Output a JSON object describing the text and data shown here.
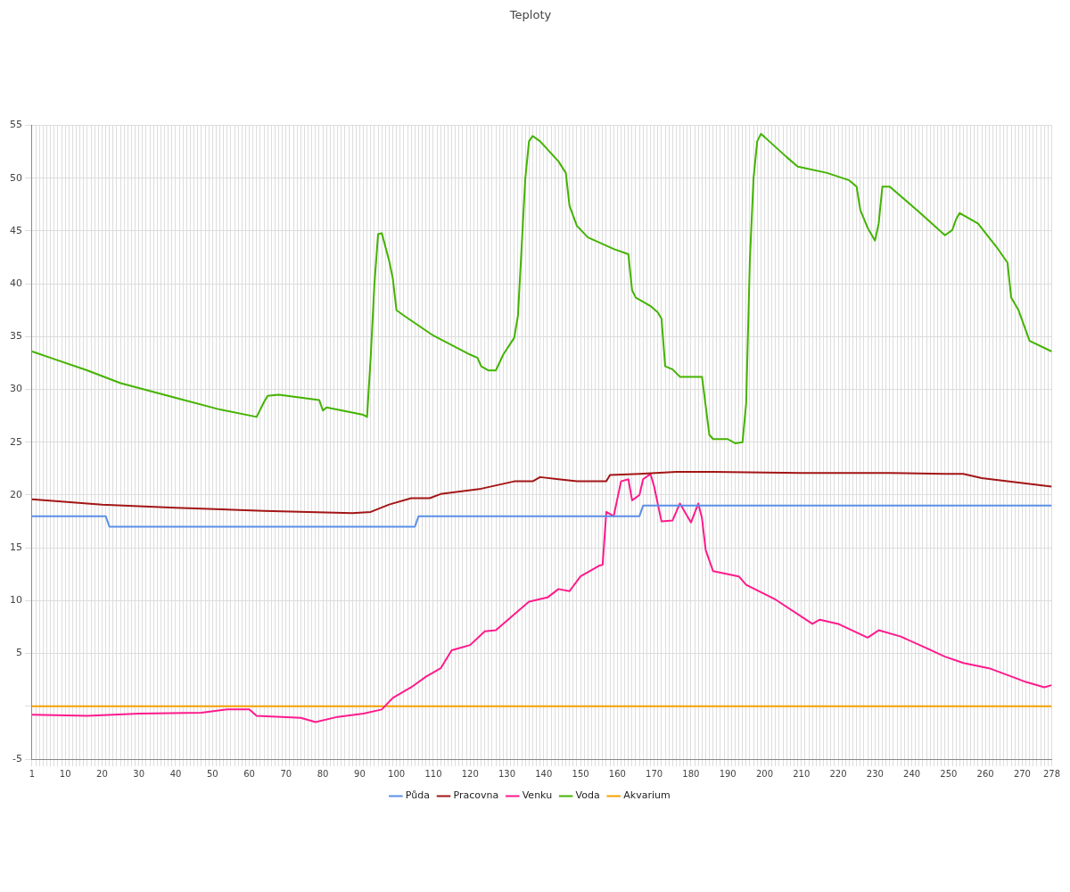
{
  "chart_data": {
    "type": "line",
    "title": "Teploty",
    "marker": "none",
    "line_style": "solid",
    "grid": true,
    "legend": "bottom",
    "xlim": [
      1,
      278
    ],
    "xticks": [
      1,
      {
        "value": 2,
        "label": null
      },
      {
        "value": 3,
        "label": null
      },
      {
        "value": 4,
        "label": null
      },
      {
        "value": 5,
        "label": null
      },
      {
        "value": 6,
        "label": null
      },
      {
        "value": 7,
        "label": null
      },
      {
        "value": 8,
        "label": null
      },
      {
        "value": 9,
        "label": null
      },
      10,
      {
        "value": 11,
        "label": null
      },
      {
        "value": 12,
        "label": null
      },
      {
        "value": 13,
        "label": null
      },
      {
        "value": 14,
        "label": null
      },
      {
        "value": 15,
        "label": null
      },
      {
        "value": 16,
        "label": null
      },
      {
        "value": 17,
        "label": null
      },
      {
        "value": 18,
        "label": null
      },
      {
        "value": 19,
        "label": null
      },
      20,
      {
        "value": 21,
        "label": null
      },
      {
        "value": 22,
        "label": null
      },
      {
        "value": 23,
        "label": null
      },
      {
        "value": 24,
        "label": null
      },
      {
        "value": 25,
        "label": null
      },
      {
        "value": 26,
        "label": null
      },
      {
        "value": 27,
        "label": null
      },
      {
        "value": 28,
        "label": null
      },
      {
        "value": 29,
        "label": null
      },
      30,
      {
        "value": 31,
        "label": null
      },
      {
        "value": 32,
        "label": null
      },
      {
        "value": 33,
        "label": null
      },
      {
        "value": 34,
        "label": null
      },
      {
        "value": 35,
        "label": null
      },
      {
        "value": 36,
        "label": null
      },
      {
        "value": 37,
        "label": null
      },
      {
        "value": 38,
        "label": null
      },
      {
        "value": 39,
        "label": null
      },
      40,
      {
        "value": 41,
        "label": null
      },
      {
        "value": 42,
        "label": null
      },
      {
        "value": 43,
        "label": null
      },
      {
        "value": 44,
        "label": null
      },
      {
        "value": 45,
        "label": null
      },
      {
        "value": 46,
        "label": null
      },
      {
        "value": 47,
        "label": null
      },
      {
        "value": 48,
        "label": null
      },
      {
        "value": 49,
        "label": null
      },
      50,
      {
        "value": 51,
        "label": null
      },
      {
        "value": 52,
        "label": null
      },
      {
        "value": 53,
        "label": null
      },
      {
        "value": 54,
        "label": null
      },
      {
        "value": 55,
        "label": null
      },
      {
        "value": 56,
        "label": null
      },
      {
        "value": 57,
        "label": null
      },
      {
        "value": 58,
        "label": null
      },
      {
        "value": 59,
        "label": null
      },
      60,
      {
        "value": 61,
        "label": null
      },
      {
        "value": 62,
        "label": null
      },
      {
        "value": 63,
        "label": null
      },
      {
        "value": 64,
        "label": null
      },
      {
        "value": 65,
        "label": null
      },
      {
        "value": 66,
        "label": null
      },
      {
        "value": 67,
        "label": null
      },
      {
        "value": 68,
        "label": null
      },
      {
        "value": 69,
        "label": null
      },
      70,
      {
        "value": 71,
        "label": null
      },
      {
        "value": 72,
        "label": null
      },
      {
        "value": 73,
        "label": null
      },
      {
        "value": 74,
        "label": null
      },
      {
        "value": 75,
        "label": null
      },
      {
        "value": 76,
        "label": null
      },
      {
        "value": 77,
        "label": null
      },
      {
        "value": 78,
        "label": null
      },
      {
        "value": 79,
        "label": null
      },
      80,
      {
        "value": 81,
        "label": null
      },
      {
        "value": 82,
        "label": null
      },
      {
        "value": 83,
        "label": null
      },
      {
        "value": 84,
        "label": null
      },
      {
        "value": 85,
        "label": null
      },
      {
        "value": 86,
        "label": null
      },
      {
        "value": 87,
        "label": null
      },
      {
        "value": 88,
        "label": null
      },
      {
        "value": 89,
        "label": null
      },
      90,
      {
        "value": 91,
        "label": null
      },
      {
        "value": 92,
        "label": null
      },
      {
        "value": 93,
        "label": null
      },
      {
        "value": 94,
        "label": null
      },
      {
        "value": 95,
        "label": null
      },
      {
        "value": 96,
        "label": null
      },
      {
        "value": 97,
        "label": null
      },
      {
        "value": 98,
        "label": null
      },
      {
        "value": 99,
        "label": null
      },
      100,
      {
        "value": 101,
        "label": null
      },
      {
        "value": 102,
        "label": null
      },
      {
        "value": 103,
        "label": null
      },
      {
        "value": 104,
        "label": null
      },
      {
        "value": 105,
        "label": null
      },
      {
        "value": 106,
        "label": null
      },
      {
        "value": 107,
        "label": null
      },
      {
        "value": 108,
        "label": null
      },
      {
        "value": 109,
        "label": null
      },
      110,
      {
        "value": 111,
        "label": null
      },
      {
        "value": 112,
        "label": null
      },
      {
        "value": 113,
        "label": null
      },
      {
        "value": 114,
        "label": null
      },
      {
        "value": 115,
        "label": null
      },
      {
        "value": 116,
        "label": null
      },
      {
        "value": 117,
        "label": null
      },
      {
        "value": 118,
        "label": null
      },
      {
        "value": 119,
        "label": null
      },
      120,
      {
        "value": 121,
        "label": null
      },
      {
        "value": 122,
        "label": null
      },
      {
        "value": 123,
        "label": null
      },
      {
        "value": 124,
        "label": null
      },
      {
        "value": 125,
        "label": null
      },
      {
        "value": 126,
        "label": null
      },
      {
        "value": 127,
        "label": null
      },
      {
        "value": 128,
        "label": null
      },
      {
        "value": 129,
        "label": null
      },
      130,
      {
        "value": 131,
        "label": null
      },
      {
        "value": 132,
        "label": null
      },
      {
        "value": 133,
        "label": null
      },
      {
        "value": 134,
        "label": null
      },
      {
        "value": 135,
        "label": null
      },
      {
        "value": 136,
        "label": null
      },
      {
        "value": 137,
        "label": null
      },
      {
        "value": 138,
        "label": null
      },
      {
        "value": 139,
        "label": null
      },
      140,
      {
        "value": 141,
        "label": null
      },
      {
        "value": 142,
        "label": null
      },
      {
        "value": 143,
        "label": null
      },
      {
        "value": 144,
        "label": null
      },
      {
        "value": 145,
        "label": null
      },
      {
        "value": 146,
        "label": null
      },
      {
        "value": 147,
        "label": null
      },
      {
        "value": 148,
        "label": null
      },
      {
        "value": 149,
        "label": null
      },
      150,
      {
        "value": 151,
        "label": null
      },
      {
        "value": 152,
        "label": null
      },
      {
        "value": 153,
        "label": null
      },
      {
        "value": 154,
        "label": null
      },
      {
        "value": 155,
        "label": null
      },
      {
        "value": 156,
        "label": null
      },
      {
        "value": 157,
        "label": null
      },
      {
        "value": 158,
        "label": null
      },
      {
        "value": 159,
        "label": null
      },
      160,
      {
        "value": 161,
        "label": null
      },
      {
        "value": 162,
        "label": null
      },
      {
        "value": 163,
        "label": null
      },
      {
        "value": 164,
        "label": null
      },
      {
        "value": 165,
        "label": null
      },
      {
        "value": 166,
        "label": null
      },
      {
        "value": 167,
        "label": null
      },
      {
        "value": 168,
        "label": null
      },
      {
        "value": 169,
        "label": null
      },
      170,
      {
        "value": 171,
        "label": null
      },
      {
        "value": 172,
        "label": null
      },
      {
        "value": 173,
        "label": null
      },
      {
        "value": 174,
        "label": null
      },
      {
        "value": 175,
        "label": null
      },
      {
        "value": 176,
        "label": null
      },
      {
        "value": 177,
        "label": null
      },
      {
        "value": 178,
        "label": null
      },
      {
        "value": 179,
        "label": null
      },
      180,
      {
        "value": 181,
        "label": null
      },
      {
        "value": 182,
        "label": null
      },
      {
        "value": 183,
        "label": null
      },
      {
        "value": 184,
        "label": null
      },
      {
        "value": 185,
        "label": null
      },
      {
        "value": 186,
        "label": null
      },
      {
        "value": 187,
        "label": null
      },
      {
        "value": 188,
        "label": null
      },
      {
        "value": 189,
        "label": null
      },
      190,
      {
        "value": 191,
        "label": null
      },
      {
        "value": 192,
        "label": null
      },
      {
        "value": 193,
        "label": null
      },
      {
        "value": 194,
        "label": null
      },
      {
        "value": 195,
        "label": null
      },
      {
        "value": 196,
        "label": null
      },
      {
        "value": 197,
        "label": null
      },
      {
        "value": 198,
        "label": null
      },
      {
        "value": 199,
        "label": null
      },
      200,
      {
        "value": 201,
        "label": null
      },
      {
        "value": 202,
        "label": null
      },
      {
        "value": 203,
        "label": null
      },
      {
        "value": 204,
        "label": null
      },
      {
        "value": 205,
        "label": null
      },
      {
        "value": 206,
        "label": null
      },
      {
        "value": 207,
        "label": null
      },
      {
        "value": 208,
        "label": null
      },
      {
        "value": 209,
        "label": null
      },
      210,
      {
        "value": 211,
        "label": null
      },
      {
        "value": 212,
        "label": null
      },
      {
        "value": 213,
        "label": null
      },
      {
        "value": 214,
        "label": null
      },
      {
        "value": 215,
        "label": null
      },
      {
        "value": 216,
        "label": null
      },
      {
        "value": 217,
        "label": null
      },
      {
        "value": 218,
        "label": null
      },
      {
        "value": 219,
        "label": null
      },
      220,
      {
        "value": 221,
        "label": null
      },
      {
        "value": 222,
        "label": null
      },
      {
        "value": 223,
        "label": null
      },
      {
        "value": 224,
        "label": null
      },
      {
        "value": 225,
        "label": null
      },
      {
        "value": 226,
        "label": null
      },
      {
        "value": 227,
        "label": null
      },
      {
        "value": 228,
        "label": null
      },
      {
        "value": 229,
        "label": null
      },
      230,
      {
        "value": 231,
        "label": null
      },
      {
        "value": 232,
        "label": null
      },
      {
        "value": 233,
        "label": null
      },
      {
        "value": 234,
        "label": null
      },
      {
        "value": 235,
        "label": null
      },
      {
        "value": 236,
        "label": null
      },
      {
        "value": 237,
        "label": null
      },
      {
        "value": 238,
        "label": null
      },
      {
        "value": 239,
        "label": null
      },
      240,
      {
        "value": 241,
        "label": null
      },
      {
        "value": 242,
        "label": null
      },
      {
        "value": 243,
        "label": null
      },
      {
        "value": 244,
        "label": null
      },
      {
        "value": 245,
        "label": null
      },
      {
        "value": 246,
        "label": null
      },
      {
        "value": 247,
        "label": null
      },
      {
        "value": 248,
        "label": null
      },
      {
        "value": 249,
        "label": null
      },
      250,
      {
        "value": 251,
        "label": null
      },
      {
        "value": 252,
        "label": null
      },
      {
        "value": 253,
        "label": null
      },
      {
        "value": 254,
        "label": null
      },
      {
        "value": 255,
        "label": null
      },
      {
        "value": 256,
        "label": null
      },
      {
        "value": 257,
        "label": null
      },
      {
        "value": 258,
        "label": null
      },
      {
        "value": 259,
        "label": null
      },
      260,
      {
        "value": 261,
        "label": null
      },
      {
        "value": 262,
        "label": null
      },
      {
        "value": 263,
        "label": null
      },
      {
        "value": 264,
        "label": null
      },
      {
        "value": 265,
        "label": null
      },
      {
        "value": 266,
        "label": null
      },
      {
        "value": 267,
        "label": null
      },
      {
        "value": 268,
        "label": null
      },
      {
        "value": 269,
        "label": null
      },
      270,
      {
        "value": 271,
        "label": null
      },
      {
        "value": 272,
        "label": null
      },
      {
        "value": 273,
        "label": null
      },
      {
        "value": 274,
        "label": null
      },
      {
        "value": 275,
        "label": null
      },
      {
        "value": 276,
        "label": null
      },
      {
        "value": 277,
        "label": null
      },
      278
    ],
    "ylim": [
      -5,
      55
    ],
    "yticks": [
      -5,
      {
        "value": 0,
        "label": null
      },
      5,
      10,
      15,
      20,
      25,
      30,
      35,
      40,
      45,
      50,
      55
    ],
    "series": [
      {
        "name": "Půda",
        "color": "#5b8fe8",
        "x": [
          1,
          21,
          22,
          105,
          106,
          166,
          167,
          278
        ],
        "values": [
          18,
          18,
          17,
          17,
          18,
          18,
          19,
          19
        ]
      },
      {
        "name": "Pracovna",
        "color": "#a31515",
        "x": [
          1,
          20,
          40,
          64,
          88,
          93,
          98,
          104,
          109,
          112,
          123,
          132,
          137,
          139,
          144,
          149,
          157,
          158,
          166,
          176,
          186,
          210,
          234,
          249,
          254,
          259,
          271,
          278
        ],
        "values": [
          19.6,
          19.1,
          18.8,
          18.5,
          18.3,
          18.4,
          19.1,
          19.7,
          19.7,
          20.1,
          20.6,
          21.3,
          21.3,
          21.7,
          21.5,
          21.3,
          21.3,
          21.9,
          22.0,
          22.2,
          22.2,
          22.1,
          22.1,
          22.0,
          22.0,
          21.6,
          21.1,
          20.8
        ]
      },
      {
        "name": "Venku",
        "color": "#ff1a8c",
        "x": [
          1,
          16,
          30,
          47,
          54,
          60,
          62,
          74,
          78,
          84,
          91,
          96,
          99,
          104,
          108,
          112,
          115,
          120,
          124,
          127,
          131,
          136,
          141,
          144,
          147,
          150,
          155,
          156,
          157,
          159,
          161,
          163,
          164,
          166,
          167,
          169,
          170,
          172,
          175,
          177,
          180,
          182,
          183,
          184,
          186,
          193,
          195,
          203,
          213,
          215,
          220,
          228,
          231,
          237,
          244,
          249,
          254,
          261,
          268,
          271,
          276,
          278
        ],
        "values": [
          -0.8,
          -0.9,
          -0.7,
          -0.6,
          -0.3,
          -0.3,
          -0.9,
          -1.1,
          -1.5,
          -1.0,
          -0.7,
          -0.3,
          0.8,
          1.8,
          2.8,
          3.6,
          5.3,
          5.8,
          7.1,
          7.2,
          8.4,
          9.9,
          10.3,
          11.1,
          10.9,
          12.3,
          13.3,
          13.4,
          18.4,
          18.0,
          21.3,
          21.5,
          19.5,
          20.0,
          21.5,
          22.0,
          20.8,
          17.5,
          17.6,
          19.2,
          17.4,
          19.2,
          17.8,
          14.8,
          12.8,
          12.3,
          11.5,
          10.1,
          7.8,
          8.2,
          7.8,
          6.5,
          7.2,
          6.6,
          5.5,
          4.7,
          4.1,
          3.6,
          2.7,
          2.3,
          1.8,
          2.0
        ]
      },
      {
        "name": "Voda",
        "color": "#44b300",
        "x": [
          1,
          6,
          16,
          25,
          40,
          52,
          62,
          64,
          65,
          68,
          79,
          80,
          81,
          91,
          92,
          93,
          94,
          95,
          96,
          98,
          99,
          100,
          102,
          110,
          115,
          120,
          122,
          123,
          125,
          127,
          129,
          132,
          133,
          135,
          136,
          137,
          139,
          144,
          146,
          147,
          149,
          152,
          159,
          163,
          164,
          165,
          169,
          171,
          172,
          173,
          175,
          177,
          183,
          185,
          186,
          190,
          192,
          194,
          195,
          196,
          197,
          198,
          199,
          200,
          206,
          209,
          217,
          223,
          225,
          226,
          228,
          230,
          231,
          232,
          234,
          242,
          249,
          251,
          252,
          253,
          258,
          263,
          266,
          267,
          269,
          272,
          278
        ],
        "values": [
          33.6,
          33.0,
          31.8,
          30.6,
          29.2,
          28.1,
          27.4,
          28.8,
          29.4,
          29.5,
          29.0,
          28.0,
          28.3,
          27.6,
          27.4,
          33.1,
          40.0,
          44.7,
          44.8,
          42.2,
          40.5,
          37.5,
          37.0,
          35.1,
          34.2,
          33.3,
          33.0,
          32.2,
          31.8,
          31.8,
          33.3,
          34.9,
          37.0,
          50.0,
          53.5,
          54.0,
          53.5,
          51.6,
          50.5,
          47.4,
          45.5,
          44.4,
          43.3,
          42.8,
          39.4,
          38.7,
          37.9,
          37.3,
          36.7,
          32.2,
          31.9,
          31.2,
          31.2,
          25.7,
          25.3,
          25.3,
          24.9,
          25.0,
          28.7,
          42.2,
          50.0,
          53.5,
          54.2,
          53.9,
          52.0,
          51.1,
          50.5,
          49.8,
          49.2,
          47.0,
          45.3,
          44.1,
          45.7,
          49.2,
          49.2,
          46.8,
          44.6,
          45.1,
          46.1,
          46.7,
          45.7,
          43.5,
          42.0,
          38.7,
          37.5,
          34.6,
          33.6
        ]
      },
      {
        "name": "Akvarium",
        "color": "#f5a000",
        "x": [
          1,
          278
        ],
        "values": [
          0,
          0
        ]
      }
    ]
  }
}
